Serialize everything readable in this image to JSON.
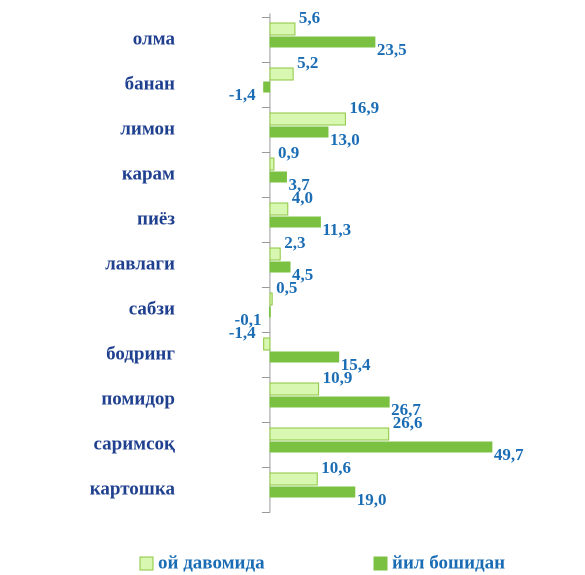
{
  "chart_data": {
    "type": "hbar",
    "categories": [
      "олма",
      "банан",
      "лимон",
      "карам",
      "пиёз",
      "лавлаги",
      "сабзи",
      "бодринг",
      "помидор",
      "саримсоқ",
      "картошка"
    ],
    "series": [
      {
        "name": "ой давомида",
        "color": "#d8f7b0",
        "stroke": "#8cc63f",
        "values": [
          5.6,
          5.2,
          16.9,
          0.9,
          4.0,
          2.3,
          0.5,
          -1.4,
          10.9,
          26.6,
          10.6
        ],
        "value_labels": [
          "5,6",
          "5,2",
          "16,9",
          "0,9",
          "4,0",
          "2,3",
          "0,5",
          "-1,4",
          "10,9",
          "26,6",
          "10,6"
        ]
      },
      {
        "name": "йил бошидан",
        "color": "#7ac142",
        "stroke": "#7ac142",
        "values": [
          23.5,
          -1.4,
          13.0,
          3.7,
          11.3,
          4.5,
          -0.1,
          15.4,
          26.7,
          49.7,
          19.0
        ],
        "value_labels": [
          "23,5",
          "-1,4",
          "13,0",
          "3,7",
          "11,3",
          "4,5",
          "-0,1",
          "15,4",
          "26,7",
          "49,7",
          "19,0"
        ]
      }
    ],
    "xlim": [
      -2,
      50
    ],
    "legend": "bottom"
  }
}
